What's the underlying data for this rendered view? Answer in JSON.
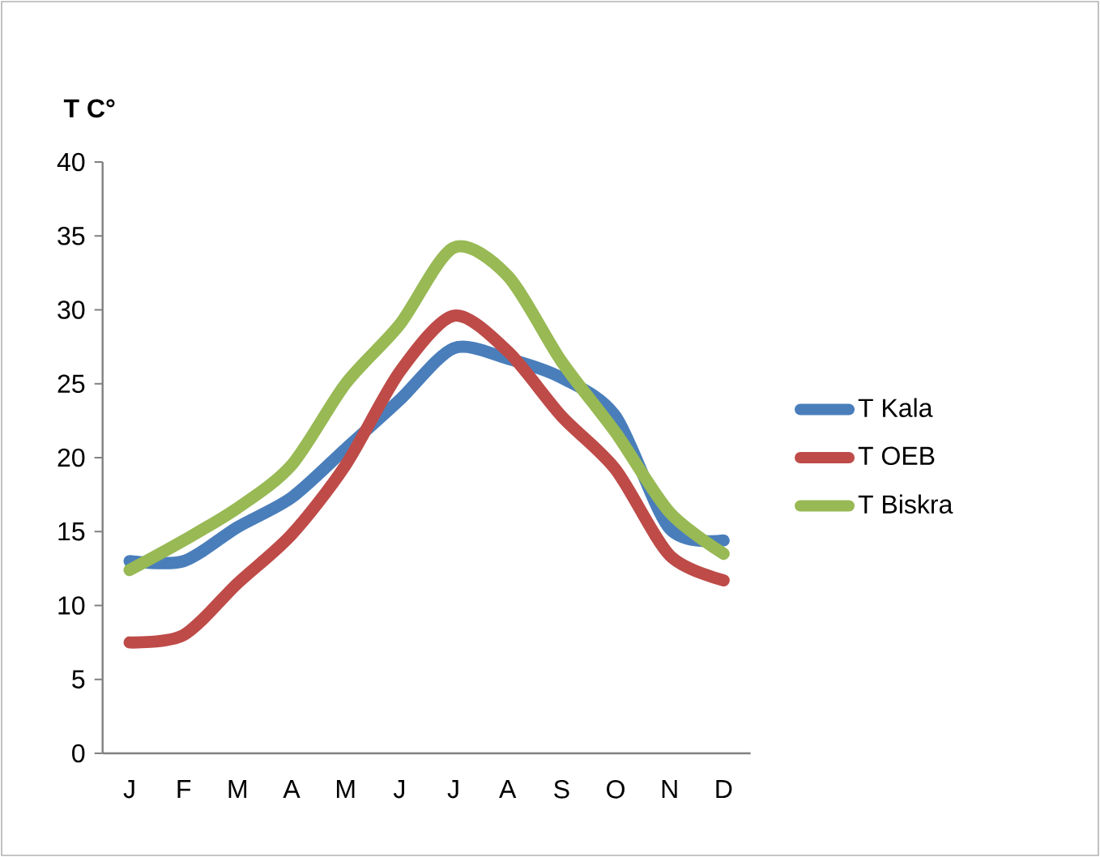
{
  "chart_data": {
    "type": "line",
    "ylabel": "T C°",
    "categories": [
      "J",
      "F",
      "M",
      "A",
      "M",
      "J",
      "J",
      "A",
      "S",
      "O",
      "N",
      "D"
    ],
    "series": [
      {
        "name": "T Kala",
        "color": "#4a7ebb",
        "values": [
          13.0,
          13.0,
          15.3,
          17.3,
          20.6,
          23.9,
          27.4,
          26.7,
          25.4,
          22.8,
          15.2,
          14.4
        ]
      },
      {
        "name": "T OEB",
        "color": "#be4b48",
        "values": [
          7.5,
          8.0,
          11.5,
          14.8,
          19.5,
          25.8,
          29.6,
          27.2,
          22.8,
          19.2,
          13.4,
          11.7
        ]
      },
      {
        "name": "T Biskra",
        "color": "#98b954",
        "values": [
          12.4,
          14.4,
          16.6,
          19.5,
          25.0,
          29.0,
          34.2,
          32.3,
          26.5,
          21.7,
          16.3,
          13.5
        ]
      }
    ],
    "ylim": [
      0,
      40
    ],
    "yticks": [
      0,
      5,
      10,
      15,
      20,
      25,
      30,
      35,
      40
    ],
    "grid": false,
    "legend": "right",
    "marker": "none",
    "line_style": "solid"
  }
}
